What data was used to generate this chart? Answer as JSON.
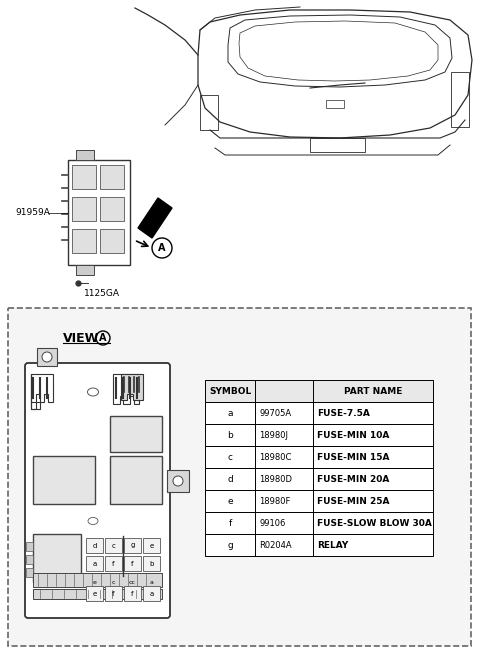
{
  "bg_color": "#ffffff",
  "table_data": {
    "symbols": [
      "a",
      "b",
      "c",
      "d",
      "e",
      "f",
      "g"
    ],
    "part_numbers": [
      "99705A",
      "18980J",
      "18980C",
      "18980D",
      "18980F",
      "99106",
      "R0204A"
    ],
    "part_names": [
      "FUSE-7.5A",
      "FUSE-MIN 10A",
      "FUSE-MIN 15A",
      "FUSE-MIN 20A",
      "FUSE-MIN 25A",
      "FUSE-SLOW BLOW 30A",
      "RELAY"
    ],
    "col_headers": [
      "SYMBOL",
      "",
      "PART NAME"
    ]
  },
  "label_91959A": "91959A",
  "label_1125GA": "1125GA",
  "label_view_a": "VIEW",
  "label_A": "A"
}
